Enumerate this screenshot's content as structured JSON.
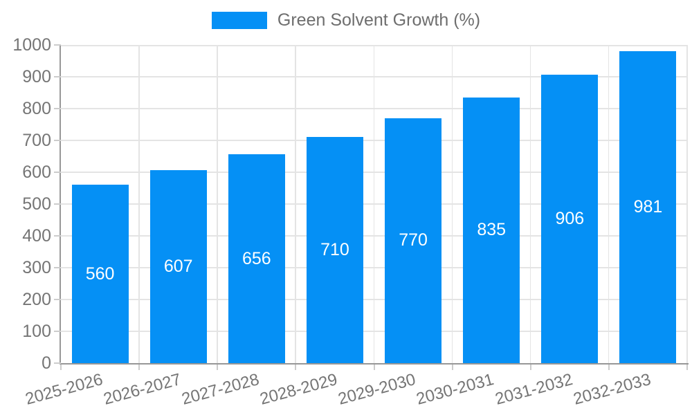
{
  "chart_data": {
    "type": "bar",
    "legend": "Green Solvent Growth (%)",
    "legend_position": "top",
    "categories": [
      "2025-2026",
      "2026-2027",
      "2027-2028",
      "2028-2029",
      "2029-2030",
      "2030-2031",
      "2031-2032",
      "2032-2033"
    ],
    "values": [
      560,
      607,
      656,
      710,
      770,
      835,
      906,
      981
    ],
    "value_labels_position": "inside-center",
    "xlabel": "",
    "ylabel": "",
    "ylim": [
      0,
      1000
    ],
    "y_ticks": [
      0,
      100,
      200,
      300,
      400,
      500,
      600,
      700,
      800,
      900,
      1000
    ],
    "x_label_rotation_deg": -15,
    "grid": true,
    "colors": {
      "bar": "#0590F5",
      "value_label": "#ffffff",
      "axis_text": "#757575",
      "legend_text": "#6e6e6e",
      "axis_line": "#979797",
      "grid_line": "#e4e4e4",
      "tick": "#cccccc"
    }
  }
}
